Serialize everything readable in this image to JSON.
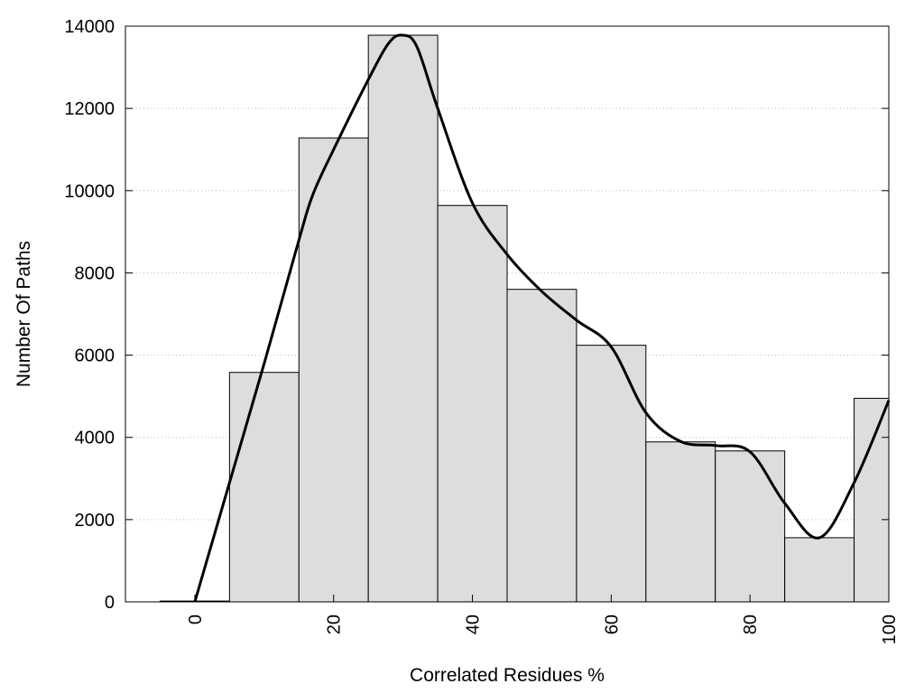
{
  "chart_data": {
    "type": "bar",
    "title": "",
    "xlabel": "Correlated Residues %",
    "ylabel": "Number Of Paths",
    "xlim": [
      -10,
      100
    ],
    "ylim": [
      0,
      14000
    ],
    "x_ticks": [
      0,
      20,
      40,
      60,
      80,
      100
    ],
    "y_ticks": [
      0,
      2000,
      4000,
      6000,
      8000,
      10000,
      12000,
      14000
    ],
    "grid": "horizontal dotted",
    "legend": "none",
    "bin_width": 10,
    "bins": [
      {
        "center": 0,
        "value": 20
      },
      {
        "center": 10,
        "value": 5580
      },
      {
        "center": 20,
        "value": 11280
      },
      {
        "center": 30,
        "value": 13780
      },
      {
        "center": 40,
        "value": 9640
      },
      {
        "center": 50,
        "value": 7600
      },
      {
        "center": 60,
        "value": 6240
      },
      {
        "center": 70,
        "value": 3890
      },
      {
        "center": 80,
        "value": 3670
      },
      {
        "center": 90,
        "value": 1560
      },
      {
        "center": 100,
        "value": 4950
      }
    ],
    "smooth_curve": {
      "x": [
        0,
        5,
        10,
        15,
        17,
        20,
        25,
        28,
        30,
        32,
        35,
        40,
        45,
        50,
        55,
        60,
        65,
        70,
        75,
        80,
        85,
        90,
        95,
        100
      ],
      "y": [
        0,
        2900,
        5800,
        8800,
        9900,
        11000,
        12700,
        13600,
        13780,
        13500,
        12000,
        9700,
        8450,
        7550,
        6850,
        6200,
        4600,
        3900,
        3800,
        3650,
        2400,
        1560,
        2900,
        4900
      ]
    },
    "colors": {
      "bar_fill": "#dddddd",
      "bar_stroke": "#000000",
      "curve": "#000000",
      "grid": "#bbbbbb"
    }
  }
}
